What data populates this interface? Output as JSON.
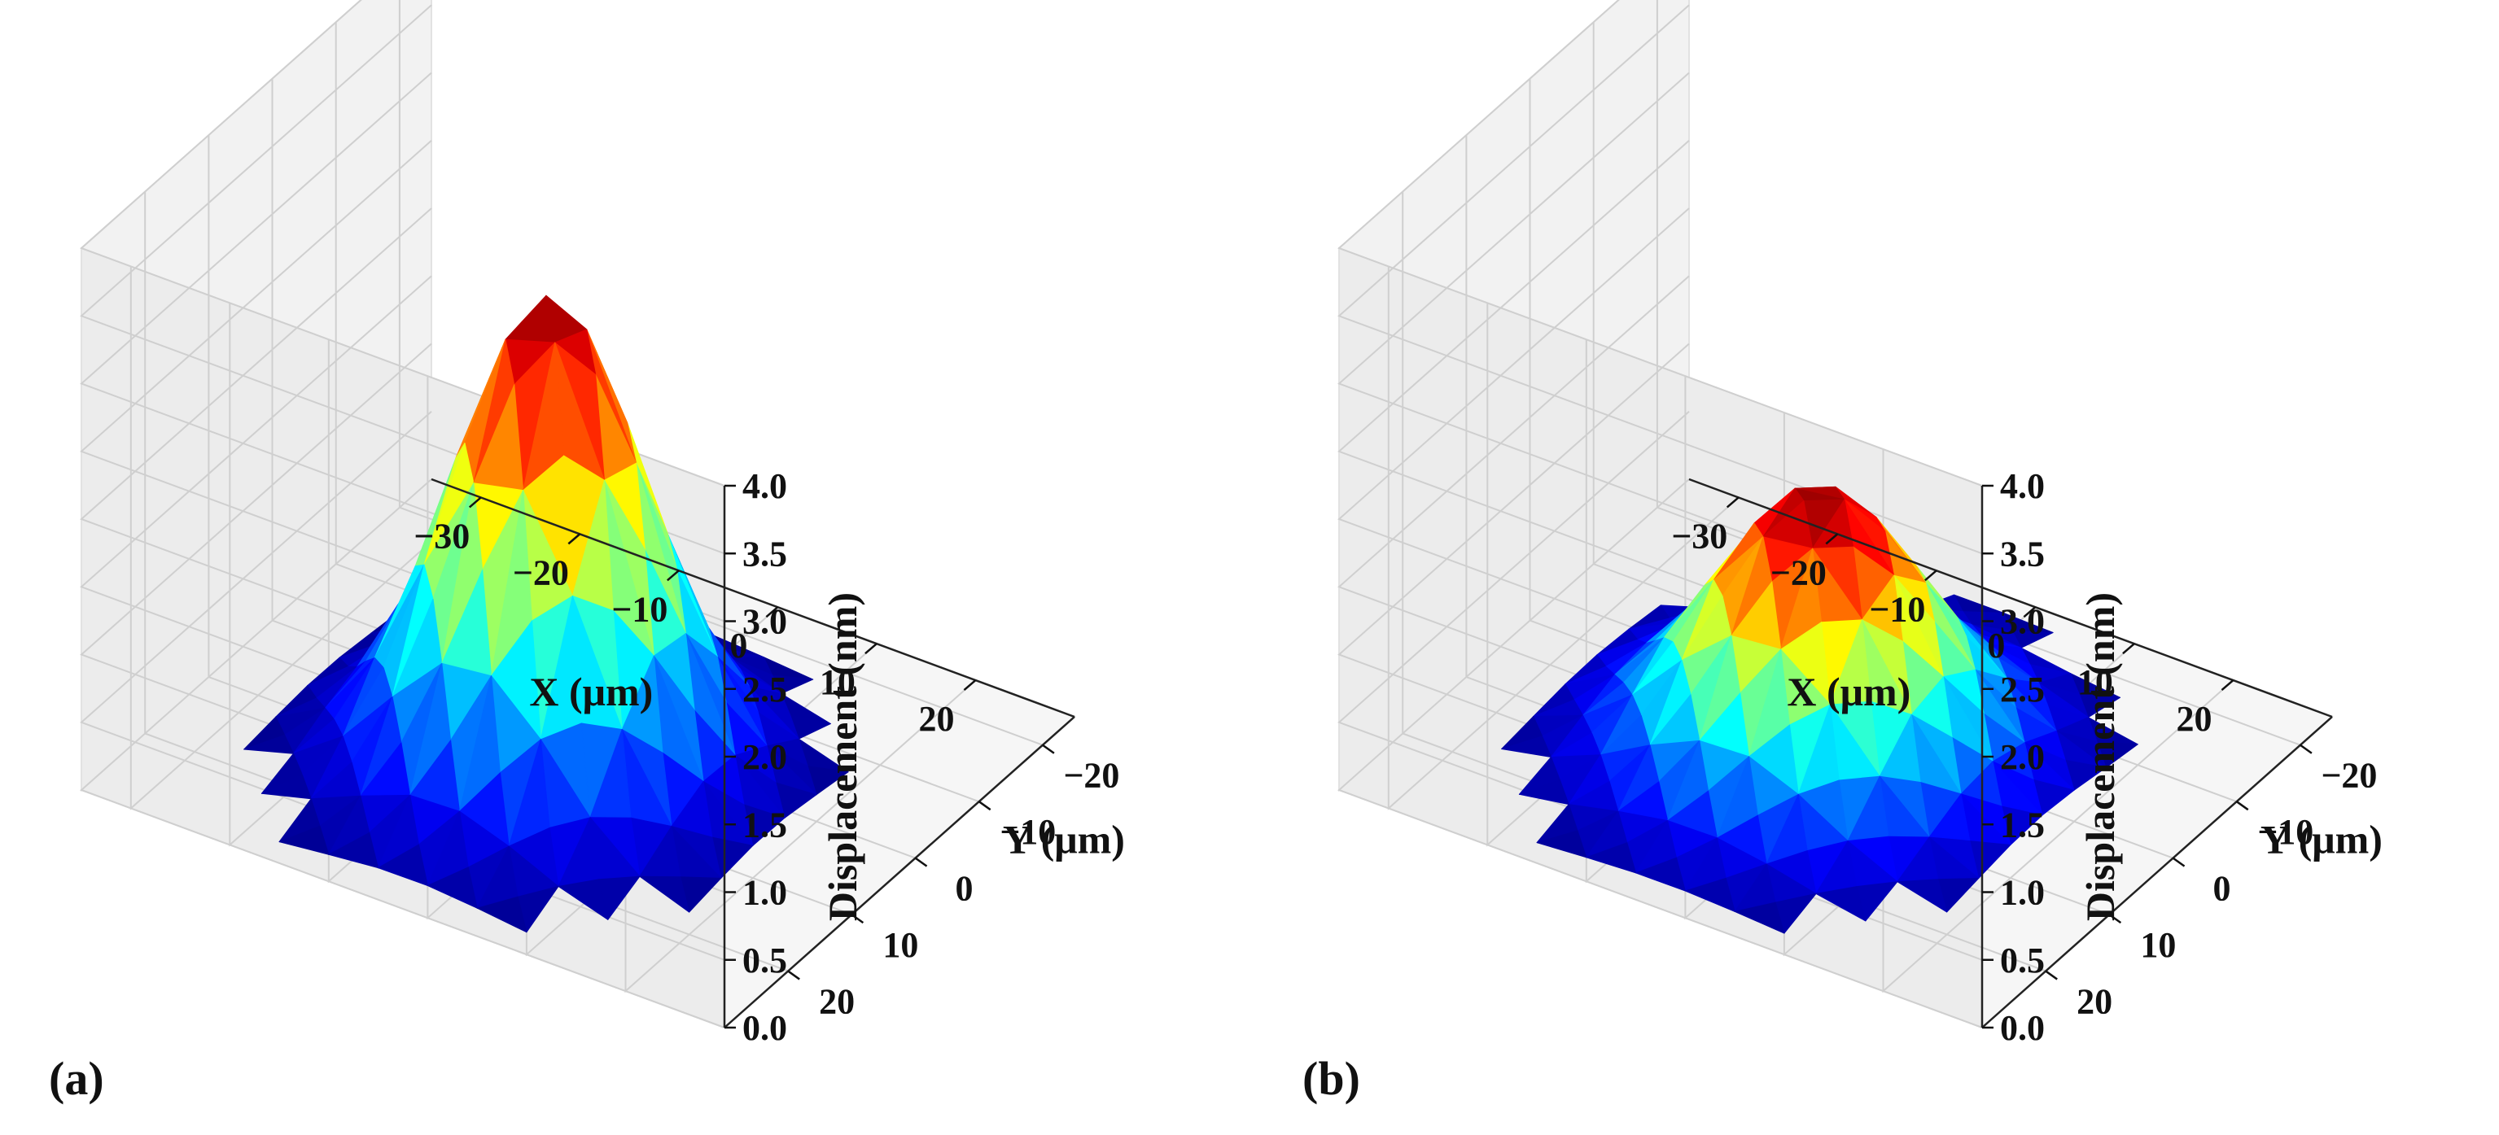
{
  "figure": {
    "panels": [
      {
        "label": "(a)",
        "surface_key": "peak_a"
      },
      {
        "label": "(b)",
        "surface_key": "peak_b"
      }
    ]
  },
  "colormap": [
    "#00007f",
    "#0000ff",
    "#007fff",
    "#00ffff",
    "#7fff7f",
    "#ffff00",
    "#ff7f00",
    "#ff0000",
    "#7f0000"
  ],
  "pane_colors": {
    "back_wall": "#ececec",
    "side_wall": "#f2f2f2",
    "floor": "#f6f6f6",
    "grid": "#cfcfcf"
  },
  "chart_data": [
    {
      "type": "surface3d",
      "panel": "(a)",
      "xlabel": "X (μm)",
      "ylabel": "Y (μm)",
      "zlabel": "Displacement (nm)",
      "xlim": [
        -35,
        30
      ],
      "ylim": [
        -25,
        30
      ],
      "zlim": [
        0,
        4
      ],
      "xticks": [
        -30,
        -20,
        -10,
        0,
        10,
        20
      ],
      "yticks": [
        -20,
        -10,
        0,
        10,
        20
      ],
      "zticks": [
        0.0,
        0.5,
        1.0,
        1.5,
        2.0,
        2.5,
        3.0,
        3.5,
        4.0
      ],
      "xtick_labels": [
        "−30",
        "−20",
        "−10",
        "0",
        "10",
        "20"
      ],
      "ytick_labels": [
        "−20",
        "−10",
        "0",
        "10",
        "20"
      ],
      "ztick_labels": [
        "0.0",
        "0.5",
        "1.0",
        "1.5",
        "2.0",
        "2.5",
        "3.0",
        "3.5",
        "4.0"
      ],
      "surface": {
        "peak_z": 3.6,
        "base_z": 0.12,
        "center_x": -2,
        "center_y": 8,
        "sigma": 8.5,
        "footprint_radius": 24,
        "grid_step": 5
      }
    },
    {
      "type": "surface3d",
      "panel": "(b)",
      "xlabel": "X (μm)",
      "ylabel": "Y (μm)",
      "zlabel": "Displacement (nm)",
      "xlim": [
        -35,
        30
      ],
      "ylim": [
        -25,
        30
      ],
      "zlim": [
        0,
        4
      ],
      "xticks": [
        -30,
        -20,
        -10,
        0,
        10,
        20
      ],
      "yticks": [
        -20,
        -10,
        0,
        10,
        20
      ],
      "zticks": [
        0.0,
        0.5,
        1.0,
        1.5,
        2.0,
        2.5,
        3.0,
        3.5,
        4.0
      ],
      "xtick_labels": [
        "−30",
        "−20",
        "−10",
        "0",
        "10",
        "20"
      ],
      "ytick_labels": [
        "−20",
        "−10",
        "0",
        "10",
        "20"
      ],
      "ztick_labels": [
        "0.0",
        "0.5",
        "1.0",
        "1.5",
        "2.0",
        "2.5",
        "3.0",
        "3.5",
        "4.0"
      ],
      "surface": {
        "peak_z": 2.1,
        "base_z": 0.12,
        "center_x": -2,
        "center_y": 6,
        "sigma": 9.5,
        "footprint_radius": 24,
        "grid_step": 5
      }
    }
  ]
}
